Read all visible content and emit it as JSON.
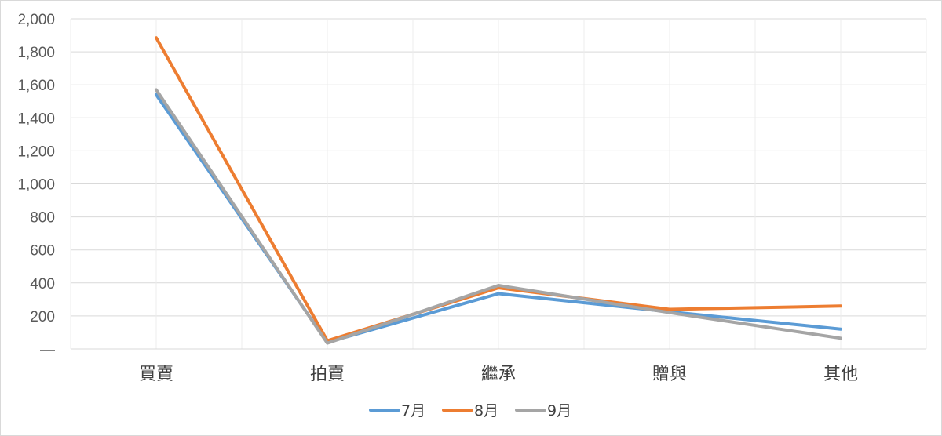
{
  "chart_data": {
    "type": "line",
    "title": "",
    "xlabel": "",
    "ylabel": "",
    "categories": [
      "買賣",
      "拍賣",
      "繼承",
      "贈與",
      "其他"
    ],
    "series": [
      {
        "name": "7月",
        "color": "#5B9BD5",
        "values": [
          1540,
          40,
          335,
          225,
          120
        ]
      },
      {
        "name": "8月",
        "color": "#ED7D31",
        "values": [
          1885,
          50,
          370,
          240,
          260
        ]
      },
      {
        "name": "9月",
        "color": "#A5A5A5",
        "values": [
          1570,
          35,
          385,
          220,
          65
        ]
      }
    ],
    "ylim": [
      0,
      2000
    ],
    "yticks": [
      {
        "value": 0,
        "label": "—"
      },
      {
        "value": 200,
        "label": "200"
      },
      {
        "value": 400,
        "label": "400"
      },
      {
        "value": 600,
        "label": "600"
      },
      {
        "value": 800,
        "label": "800"
      },
      {
        "value": 1000,
        "label": "1,000"
      },
      {
        "value": 1200,
        "label": "1,200"
      },
      {
        "value": 1400,
        "label": "1,400"
      },
      {
        "value": 1600,
        "label": "1,600"
      },
      {
        "value": 1800,
        "label": "1,800"
      },
      {
        "value": 2000,
        "label": "2,000"
      }
    ],
    "grid": true,
    "legend_position": "bottom"
  }
}
